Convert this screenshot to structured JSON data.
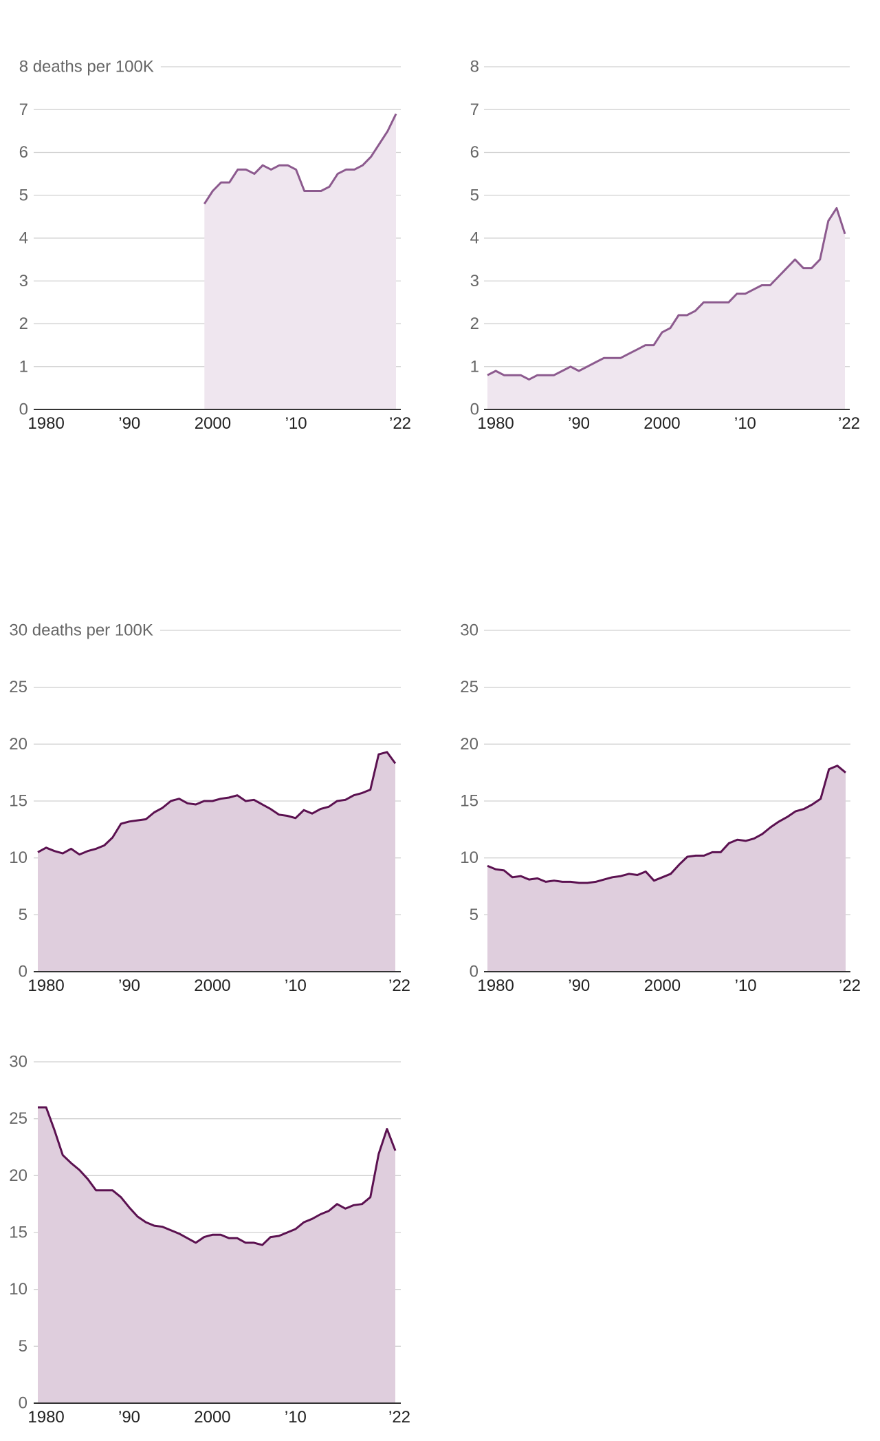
{
  "chart_data": [
    {
      "type": "area",
      "y_unit_label": "deaths per 100K",
      "ylim": [
        0,
        8
      ],
      "yticks": [
        0,
        1,
        2,
        3,
        4,
        5,
        6,
        7,
        8
      ],
      "xlim": [
        1979,
        2022
      ],
      "xtick_values": [
        1980,
        1990,
        2000,
        2010,
        2022
      ],
      "xtick_labels": [
        "1980",
        "’90",
        "2000",
        "’10",
        "’22"
      ],
      "grid": true,
      "line_color": "#8c5a8e",
      "fill_color": "#efe6ef",
      "x": [
        1999,
        2000,
        2001,
        2002,
        2003,
        2004,
        2005,
        2006,
        2007,
        2008,
        2009,
        2010,
        2011,
        2012,
        2013,
        2014,
        2015,
        2016,
        2017,
        2018,
        2019,
        2020,
        2021,
        2022
      ],
      "values": [
        4.8,
        5.1,
        5.3,
        5.3,
        5.6,
        5.6,
        5.5,
        5.7,
        5.6,
        5.7,
        5.7,
        5.6,
        5.1,
        5.1,
        5.1,
        5.2,
        5.5,
        5.6,
        5.6,
        5.7,
        5.9,
        6.2,
        6.5,
        6.9
      ]
    },
    {
      "type": "area",
      "ylim": [
        0,
        8
      ],
      "yticks": [
        0,
        1,
        2,
        3,
        4,
        5,
        6,
        7,
        8
      ],
      "xlim": [
        1979,
        2022
      ],
      "xtick_values": [
        1980,
        1990,
        2000,
        2010,
        2022
      ],
      "xtick_labels": [
        "1980",
        "’90",
        "2000",
        "’10",
        "’22"
      ],
      "grid": true,
      "line_color": "#8c5a8e",
      "fill_color": "#efe6ef",
      "x_start": 1979,
      "values": [
        0.8,
        0.9,
        0.8,
        0.8,
        0.8,
        0.7,
        0.8,
        0.8,
        0.8,
        0.9,
        1.0,
        0.9,
        1.0,
        1.1,
        1.2,
        1.2,
        1.2,
        1.3,
        1.4,
        1.5,
        1.5,
        1.8,
        1.9,
        2.2,
        2.2,
        2.3,
        2.5,
        2.5,
        2.5,
        2.5,
        2.7,
        2.7,
        2.8,
        2.9,
        2.9,
        3.1,
        3.3,
        3.5,
        3.3,
        3.3,
        3.5,
        4.4,
        4.7,
        4.1
      ]
    },
    {
      "type": "area",
      "y_unit_label": "deaths per 100K",
      "ylim": [
        0,
        30
      ],
      "yticks": [
        0,
        5,
        10,
        15,
        20,
        25,
        30
      ],
      "xlim": [
        1979,
        2022
      ],
      "xtick_values": [
        1980,
        1990,
        2000,
        2010,
        2022
      ],
      "xtick_labels": [
        "1980",
        "’90",
        "2000",
        "’10",
        "’22"
      ],
      "grid": true,
      "line_color": "#5b1150",
      "fill_color": "#dfcedd",
      "x_start": 1979,
      "values": [
        10.5,
        10.9,
        10.6,
        10.4,
        10.8,
        10.3,
        10.6,
        10.8,
        11.1,
        11.8,
        13.0,
        13.2,
        13.3,
        13.4,
        14.0,
        14.4,
        15.0,
        15.2,
        14.8,
        14.7,
        15.0,
        15.0,
        15.2,
        15.3,
        15.5,
        15.0,
        15.1,
        14.7,
        14.3,
        13.8,
        13.7,
        13.5,
        14.2,
        13.9,
        14.3,
        14.5,
        15.0,
        15.1,
        15.5,
        15.7,
        16.0,
        19.1,
        19.3,
        18.3
      ]
    },
    {
      "type": "area",
      "ylim": [
        0,
        30
      ],
      "yticks": [
        0,
        5,
        10,
        15,
        20,
        25,
        30
      ],
      "xlim": [
        1979,
        2022
      ],
      "xtick_values": [
        1980,
        1990,
        2000,
        2010,
        2022
      ],
      "xtick_labels": [
        "1980",
        "’90",
        "2000",
        "’10",
        "’22"
      ],
      "grid": true,
      "line_color": "#5b1150",
      "fill_color": "#dfcedd",
      "x_start": 1979,
      "values": [
        9.3,
        9.0,
        8.9,
        8.3,
        8.4,
        8.1,
        8.2,
        7.9,
        8.0,
        7.9,
        7.9,
        7.8,
        7.8,
        7.9,
        8.1,
        8.3,
        8.4,
        8.6,
        8.5,
        8.8,
        8.0,
        8.3,
        8.6,
        9.4,
        10.1,
        10.2,
        10.2,
        10.5,
        10.5,
        11.3,
        11.6,
        11.5,
        11.7,
        12.1,
        12.7,
        13.2,
        13.6,
        14.1,
        14.3,
        14.7,
        15.2,
        17.8,
        18.1,
        17.5
      ]
    },
    {
      "type": "area",
      "ylim": [
        0,
        30
      ],
      "yticks": [
        0,
        5,
        10,
        15,
        20,
        25,
        30
      ],
      "xlim": [
        1979,
        2022
      ],
      "xtick_values": [
        1980,
        1990,
        2000,
        2010,
        2022
      ],
      "xtick_labels": [
        "1980",
        "’90",
        "2000",
        "’10",
        "’22"
      ],
      "grid": true,
      "line_color": "#5b1150",
      "fill_color": "#dfcedd",
      "x_start": 1979,
      "values": [
        26.0,
        26.0,
        24.0,
        21.8,
        21.1,
        20.5,
        19.7,
        18.7,
        18.7,
        18.7,
        18.1,
        17.2,
        16.4,
        15.9,
        15.6,
        15.5,
        15.2,
        14.9,
        14.5,
        14.1,
        14.6,
        14.8,
        14.8,
        14.5,
        14.5,
        14.1,
        14.1,
        13.9,
        14.6,
        14.7,
        15.0,
        15.3,
        15.9,
        16.2,
        16.6,
        16.9,
        17.5,
        17.1,
        17.4,
        17.5,
        18.1,
        21.9,
        24.1,
        22.2
      ]
    }
  ]
}
